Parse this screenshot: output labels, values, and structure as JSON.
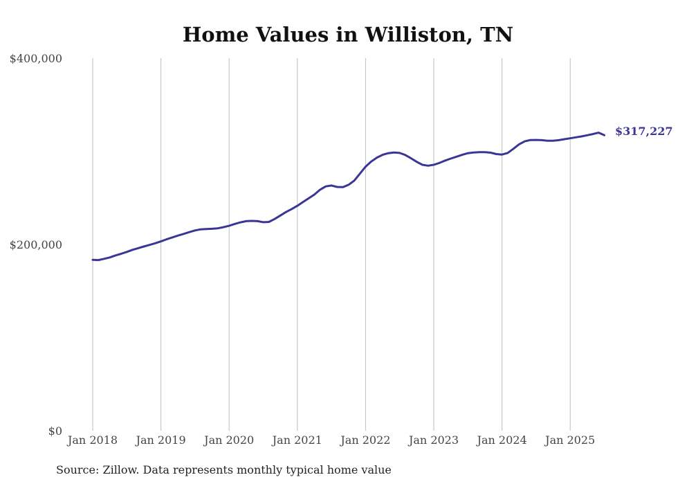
{
  "chart_data": {
    "type": "line",
    "title": "Home Values in Williston, TN",
    "source": "Source: Zillow. Data represents monthly typical home value",
    "ylim": [
      0,
      400000
    ],
    "y_ticks": [
      {
        "value": 0,
        "label": "$0"
      },
      {
        "value": 200000,
        "label": "$200,000"
      },
      {
        "value": 400000,
        "label": "$400,000"
      }
    ],
    "x_ticks": [
      "Jan 2018",
      "Jan 2019",
      "Jan 2020",
      "Jan 2021",
      "Jan 2022",
      "Jan 2023",
      "Jan 2024",
      "Jan 2025"
    ],
    "grid": "vertical",
    "line_color": "#3b3596",
    "end_label": "$317,227",
    "series": [
      {
        "x": [
          "2018-01",
          "2018-02",
          "2018-03",
          "2018-04",
          "2018-05",
          "2018-06",
          "2018-07",
          "2018-08",
          "2018-09",
          "2018-10",
          "2018-11",
          "2018-12",
          "2019-01",
          "2019-02",
          "2019-03",
          "2019-04",
          "2019-05",
          "2019-06",
          "2019-07",
          "2019-08",
          "2019-09",
          "2019-10",
          "2019-11",
          "2019-12",
          "2020-01",
          "2020-02",
          "2020-03",
          "2020-04",
          "2020-05",
          "2020-06",
          "2020-07",
          "2020-08",
          "2020-09",
          "2020-10",
          "2020-11",
          "2020-12",
          "2021-01",
          "2021-02",
          "2021-03",
          "2021-04",
          "2021-05",
          "2021-06",
          "2021-07",
          "2021-08",
          "2021-09",
          "2021-10",
          "2021-11",
          "2021-12",
          "2022-01",
          "2022-02",
          "2022-03",
          "2022-04",
          "2022-05",
          "2022-06",
          "2022-07",
          "2022-08",
          "2022-09",
          "2022-10",
          "2022-11",
          "2022-12",
          "2023-01",
          "2023-02",
          "2023-03",
          "2023-04",
          "2023-05",
          "2023-06",
          "2023-07",
          "2023-08",
          "2023-09",
          "2023-10",
          "2023-11",
          "2023-12",
          "2024-01",
          "2024-02",
          "2024-03",
          "2024-04",
          "2024-05",
          "2024-06",
          "2024-07",
          "2024-08",
          "2024-09",
          "2024-10",
          "2024-11",
          "2024-12",
          "2025-01",
          "2025-02",
          "2025-03",
          "2025-04",
          "2025-05",
          "2025-06",
          "2025-07"
        ],
        "values": [
          183500,
          183200,
          184500,
          186000,
          188200,
          190000,
          192000,
          194200,
          196000,
          197800,
          199500,
          201300,
          203300,
          205500,
          207500,
          209500,
          211300,
          213200,
          215000,
          216200,
          216500,
          216800,
          217300,
          218500,
          220000,
          222000,
          223700,
          225000,
          225300,
          225000,
          223900,
          224200,
          227300,
          231000,
          234800,
          238000,
          241500,
          245500,
          249500,
          253500,
          258800,
          262300,
          263300,
          261700,
          261500,
          264000,
          268500,
          276000,
          283500,
          289000,
          293200,
          296200,
          298000,
          298700,
          298200,
          296000,
          292500,
          288700,
          285500,
          284500,
          285500,
          287500,
          290000,
          292200,
          294200,
          296200,
          298000,
          298700,
          299000,
          299000,
          298500,
          297000,
          296500,
          298200,
          302700,
          307500,
          310700,
          312100,
          312200,
          312000,
          311300,
          311300,
          312000,
          313000,
          314000,
          315000,
          316000,
          317227,
          318500,
          320000,
          317227
        ]
      }
    ]
  }
}
